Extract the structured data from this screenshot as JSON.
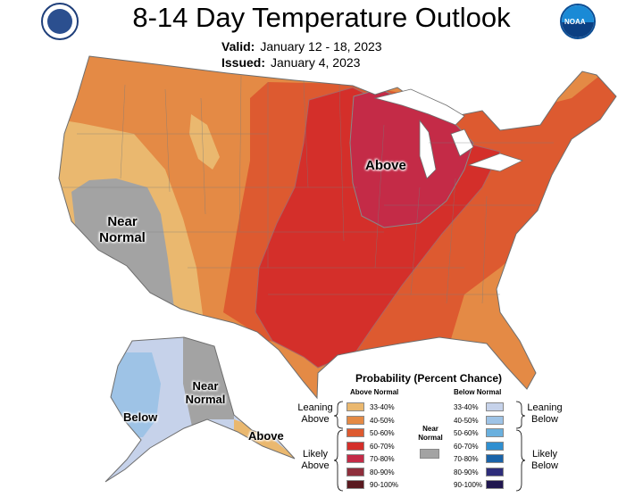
{
  "header": {
    "title": "8-14 Day Temperature Outlook",
    "valid_label": "Valid:",
    "valid_value": "January 12 - 18, 2023",
    "issued_label": "Issued:",
    "issued_value": "January 4, 2023",
    "noaa_logo_text": "NOAA"
  },
  "map_labels": {
    "conus_above": "Above",
    "conus_near_line1": "Near",
    "conus_near_line2": "Normal",
    "alaska_below": "Below",
    "alaska_near_line1": "Near",
    "alaska_near_line2": "Normal",
    "alaska_above": "Above"
  },
  "colors": {
    "above_33_40": "#eab86f",
    "above_40_50": "#e48a45",
    "above_50_60": "#dd5a30",
    "above_60_70": "#d42f2a",
    "above_70_80": "#c42b47",
    "above_80_90": "#8f2f3c",
    "above_90_100": "#5a1a20",
    "below_33_40": "#c6d2ea",
    "below_40_50": "#9ec3e6",
    "below_50_60": "#6ab0de",
    "below_60_70": "#2f8fd0",
    "below_70_80": "#1a63a8",
    "below_80_90": "#2e2d7a",
    "below_90_100": "#20174f",
    "near_normal": "#a3a3a3"
  },
  "legend": {
    "title": "Probability (Percent Chance)",
    "above_header": "Above Normal",
    "below_header": "Below Normal",
    "near_line1": "Near",
    "near_line2": "Normal",
    "leaning_above_line1": "Leaning",
    "leaning_above_line2": "Above",
    "likely_above_line1": "Likely",
    "likely_above_line2": "Above",
    "leaning_below_line1": "Leaning",
    "leaning_below_line2": "Below",
    "likely_below_line1": "Likely",
    "likely_below_line2": "Below",
    "above_ranges": [
      "33-40%",
      "40-50%",
      "50-60%",
      "60-70%",
      "70-80%",
      "80-90%",
      "90-100%"
    ],
    "below_ranges": [
      "33-40%",
      "40-50%",
      "50-60%",
      "60-70%",
      "70-80%",
      "80-90%",
      "90-100%"
    ]
  }
}
